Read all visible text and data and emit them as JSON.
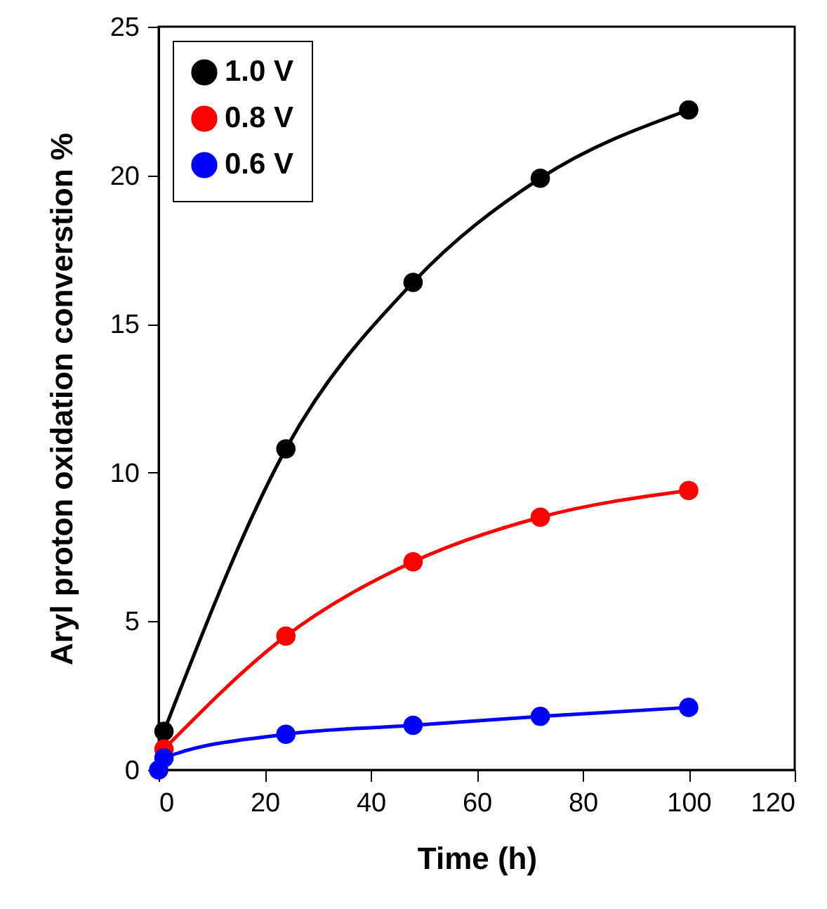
{
  "chart_data": {
    "type": "line",
    "xlabel": "Time (h)",
    "ylabel": "Aryl proton oxidation converstion %",
    "xlim": [
      0,
      120
    ],
    "xticks": [
      0,
      20,
      40,
      60,
      80,
      100,
      120
    ],
    "ylim": [
      0,
      25
    ],
    "yticks": [
      0,
      5,
      10,
      15,
      20,
      25
    ],
    "grid": false,
    "legend": "top left",
    "marker": "circle",
    "line_style": "solid",
    "series": [
      {
        "name": "1.0 V",
        "color": "#000000",
        "x": [
          1,
          24,
          48,
          72,
          100
        ],
        "values": [
          1.3,
          10.8,
          16.4,
          19.9,
          22.2
        ]
      },
      {
        "name": "0.8 V",
        "color": "#ff0000",
        "x": [
          1,
          24,
          48,
          72,
          100
        ],
        "values": [
          0.7,
          4.5,
          7.0,
          8.5,
          9.4
        ]
      },
      {
        "name": "0.6 V",
        "color": "#0000ff",
        "x": [
          0,
          1,
          24,
          48,
          72,
          100
        ],
        "values": [
          0,
          0.4,
          1.2,
          1.5,
          1.8,
          2.1
        ]
      }
    ]
  }
}
